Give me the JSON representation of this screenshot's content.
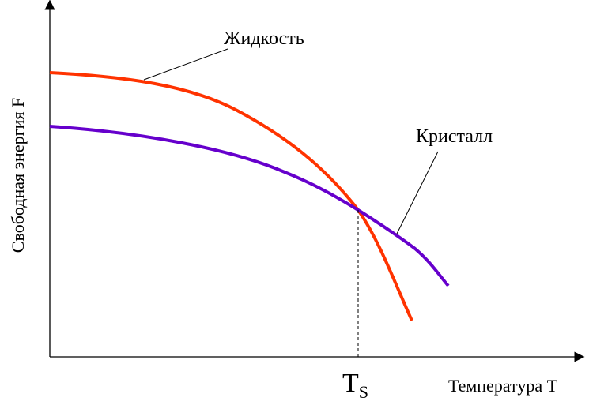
{
  "diagram": {
    "y_axis_label": "Свободная энергия F",
    "x_axis_label": "Температура T",
    "transition_point": {
      "main": "T",
      "sub": "S"
    },
    "curves": [
      {
        "label": "Жидкость",
        "color": "#ff3300"
      },
      {
        "label": "Кристалл",
        "color": "#6600cc"
      }
    ]
  }
}
